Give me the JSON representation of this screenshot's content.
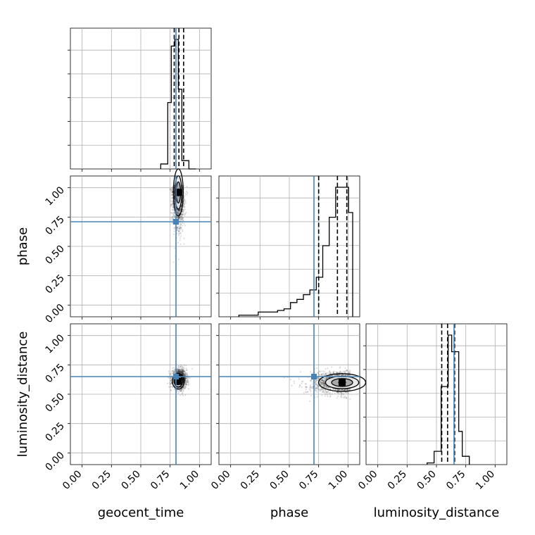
{
  "chart_data": {
    "type": "scatter",
    "kind": "corner",
    "parameters": [
      "geocent_time",
      "phase",
      "luminosity_distance"
    ],
    "axis_range": [
      -0.1,
      1.1
    ],
    "tick_values": [
      0.0,
      0.25,
      0.5,
      0.75,
      1.0
    ],
    "tick_labels": [
      "0.00",
      "0.25",
      "0.50",
      "0.75",
      "1.00"
    ],
    "truth_values": {
      "geocent_time": 0.8,
      "phase": 0.71,
      "luminosity_distance": 0.65
    },
    "truth_color": "#4682b4",
    "grid": true,
    "marginals": {
      "geocent_time": {
        "quantiles": [
          0.785,
          0.825,
          0.865
        ],
        "bin_edges": [
          0.67,
          0.7,
          0.73,
          0.76,
          0.79,
          0.82,
          0.85,
          0.88,
          0.91,
          0.94,
          0.97
        ],
        "counts": [
          3,
          3,
          40,
          74,
          78,
          48,
          5,
          5,
          0,
          0
        ]
      },
      "phase": {
        "quantiles": [
          0.75,
          0.91,
          0.99
        ],
        "bin_edges": [
          0.07,
          0.125,
          0.18,
          0.235,
          0.29,
          0.345,
          0.4,
          0.455,
          0.51,
          0.565,
          0.62,
          0.675,
          0.73,
          0.785,
          0.84,
          0.895,
          0.95,
          1.005,
          1.04
        ],
        "counts": [
          1,
          1,
          1,
          3,
          3,
          3,
          4,
          5,
          9,
          11,
          14,
          17,
          25,
          45,
          63,
          82,
          82,
          66
        ]
      },
      "luminosity_distance": {
        "quantiles": [
          0.545,
          0.595,
          0.655
        ],
        "bin_edges": [
          0.42,
          0.45,
          0.48,
          0.51,
          0.54,
          0.57,
          0.6,
          0.63,
          0.66,
          0.69,
          0.72,
          0.75,
          0.78
        ],
        "counts": [
          1,
          1,
          8,
          8,
          47,
          47,
          78,
          68,
          68,
          20,
          5,
          5
        ]
      }
    },
    "joint": [
      {
        "x": "geocent_time",
        "y": "phase",
        "mean": [
          0.82,
          0.9
        ],
        "sd": [
          0.025,
          0.12
        ],
        "peak": [
          0.82,
          0.96
        ]
      },
      {
        "x": "geocent_time",
        "y": "luminosity_distance",
        "mean": [
          0.83,
          0.63
        ],
        "sd": [
          0.03,
          0.04
        ],
        "peak": [
          0.82,
          0.61
        ]
      },
      {
        "x": "phase",
        "y": "luminosity_distance",
        "mean": [
          0.88,
          0.6
        ],
        "sd": [
          0.12,
          0.045
        ],
        "peak": [
          0.95,
          0.6
        ]
      }
    ]
  }
}
